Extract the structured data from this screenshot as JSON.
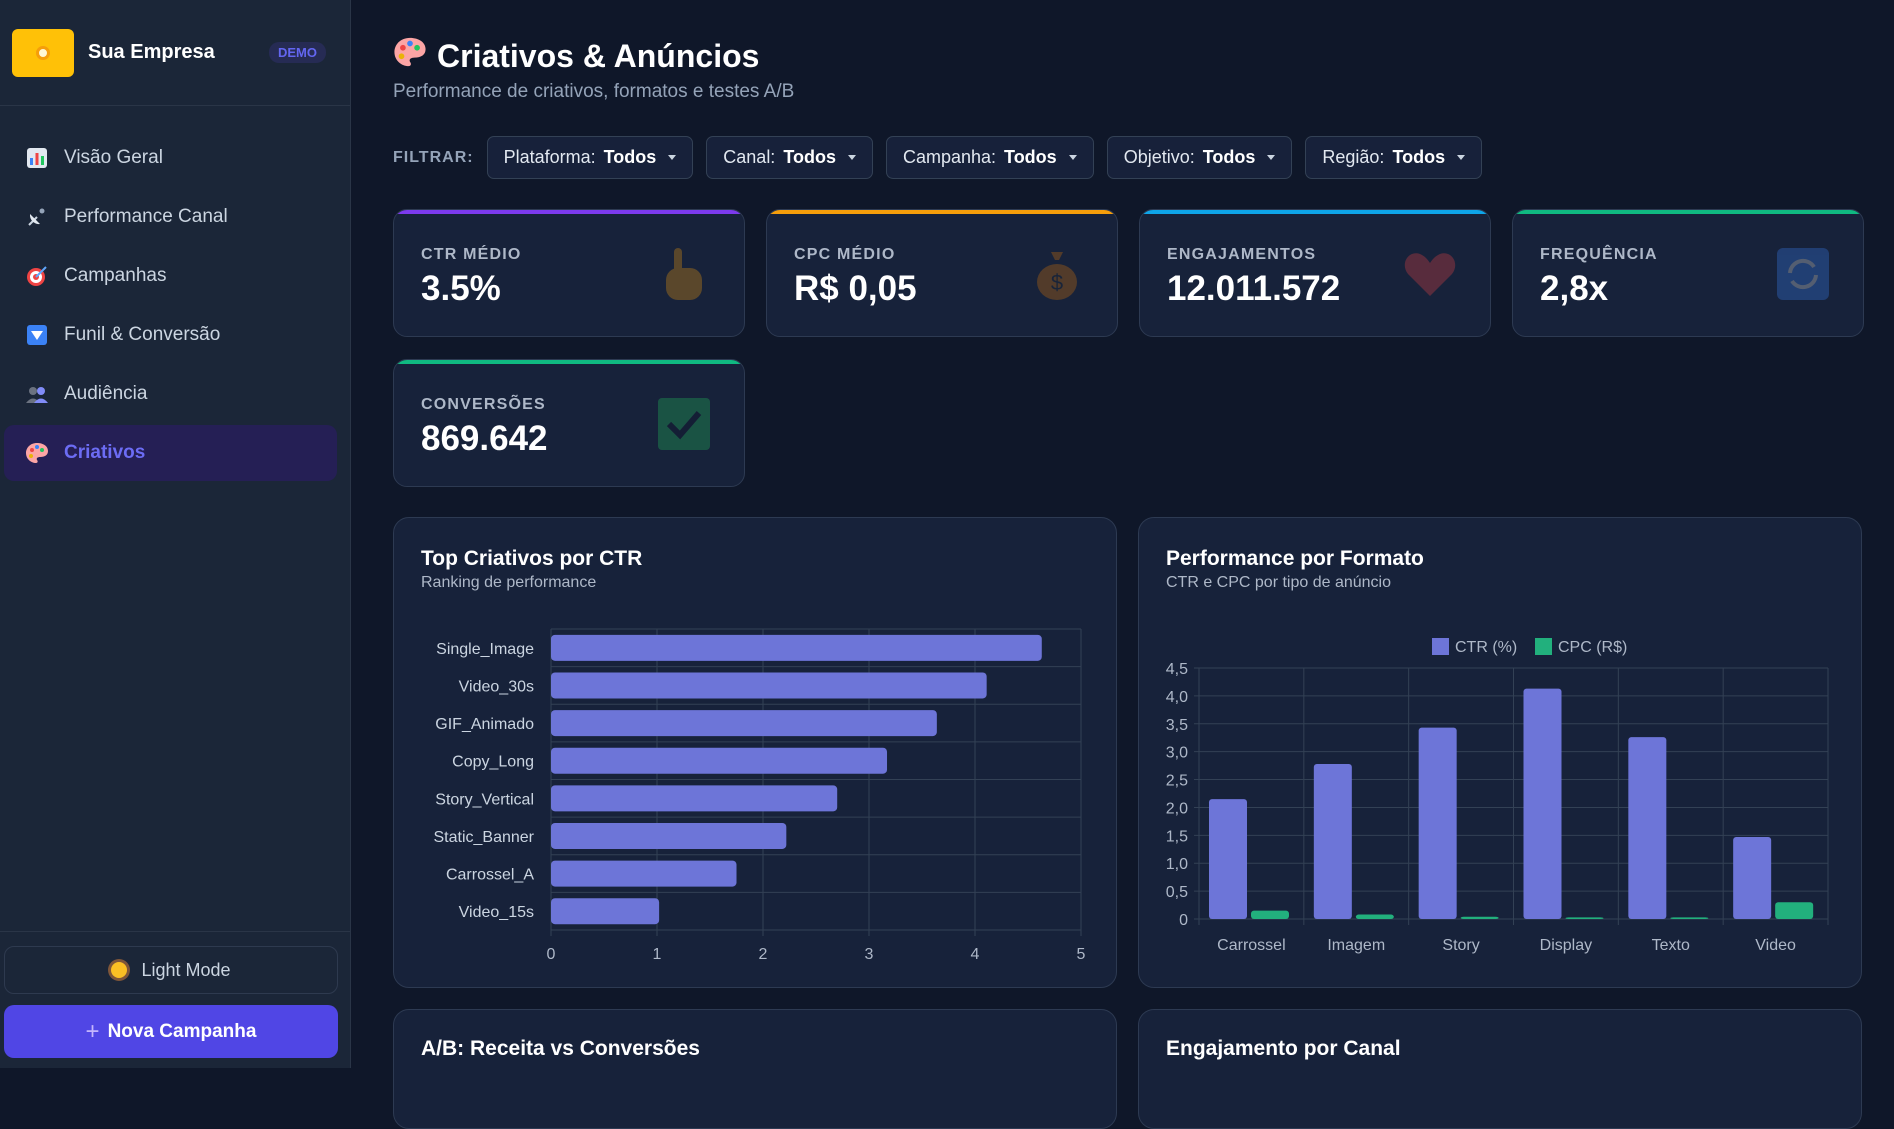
{
  "brand": {
    "name": "Sua Empresa",
    "badge": "DEMO"
  },
  "nav": [
    {
      "label": "Visão Geral",
      "icon": "bar-chart-icon"
    },
    {
      "label": "Performance Canal",
      "icon": "satellite-icon"
    },
    {
      "label": "Campanhas",
      "icon": "target-icon"
    },
    {
      "label": "Funil & Conversão",
      "icon": "funnel-down-icon"
    },
    {
      "label": "Audiência",
      "icon": "people-icon"
    },
    {
      "label": "Criativos",
      "icon": "palette-icon",
      "active": true
    }
  ],
  "sidebar_bottom": {
    "light_mode": "Light Mode",
    "new_campaign": "Nova Campanha"
  },
  "header": {
    "title": "Criativos & Anúncios",
    "subtitle": "Performance de criativos, formatos e testes A/B"
  },
  "filters": {
    "label": "FILTRAR:",
    "items": [
      {
        "name": "Plataforma:",
        "value": "Todos"
      },
      {
        "name": "Canal:",
        "value": "Todos"
      },
      {
        "name": "Campanha:",
        "value": "Todos"
      },
      {
        "name": "Objetivo:",
        "value": "Todos"
      },
      {
        "name": "Região:",
        "value": "Todos"
      }
    ]
  },
  "kpis": [
    {
      "label": "CTR MÉDIO",
      "value": "3.5%",
      "accent": "#7c3aed",
      "icon": "pointing-hand-icon"
    },
    {
      "label": "CPC MÉDIO",
      "value": "R$ 0,05",
      "accent": "#f59e0b",
      "icon": "money-bag-icon"
    },
    {
      "label": "ENGAJAMENTOS",
      "value": "12.011.572",
      "accent": "#0ea5e9",
      "icon": "heart-icon"
    },
    {
      "label": "FREQUÊNCIA",
      "value": "2,8x",
      "accent": "#10b981",
      "icon": "repeat-icon"
    },
    {
      "label": "CONVERSÕES",
      "value": "869.642",
      "accent": "#10b981",
      "icon": "check-icon"
    }
  ],
  "cards": {
    "top_creatives": {
      "title": "Top Criativos por CTR",
      "subtitle": "Ranking de performance"
    },
    "format": {
      "title": "Performance por Formato",
      "subtitle": "CTR e CPC por tipo de anúncio"
    },
    "ab": {
      "title": "A/B: Receita vs Conversões"
    },
    "engagement": {
      "title": "Engajamento por Canal"
    }
  },
  "colors": {
    "bar": "#6d75d8",
    "cpc": "#22b07d",
    "grid": "#334155",
    "tick": "#aeb8c8"
  },
  "chart_data": [
    {
      "type": "bar",
      "orientation": "horizontal",
      "title": "Top Criativos por CTR",
      "subtitle": "Ranking de performance",
      "categories": [
        "Single_Image",
        "Video_30s",
        "GIF_Animado",
        "Copy_Long",
        "Story_Vertical",
        "Static_Banner",
        "Carrossel_A",
        "Video_15s"
      ],
      "values": [
        4.63,
        4.11,
        3.64,
        3.17,
        2.7,
        2.22,
        1.75,
        1.02
      ],
      "xlim": [
        0,
        5
      ],
      "xticks": [
        "0",
        "1",
        "2",
        "3",
        "4",
        "5"
      ],
      "grid": true
    },
    {
      "type": "bar",
      "title": "Performance por Formato",
      "subtitle": "CTR e CPC por tipo de anúncio",
      "categories": [
        "Carrossel",
        "Imagem",
        "Story",
        "Display",
        "Texto",
        "Video"
      ],
      "series": [
        {
          "name": "CTR (%)",
          "values": [
            2.15,
            2.78,
            3.43,
            4.13,
            3.26,
            1.47
          ],
          "color": "#6d75d8"
        },
        {
          "name": "CPC (R$)",
          "values": [
            0.15,
            0.08,
            0.04,
            0.03,
            0.03,
            0.3
          ],
          "color": "#22b07d"
        }
      ],
      "ylim": [
        0,
        4.5
      ],
      "yticks": [
        "0",
        "0,5",
        "1,0",
        "1,5",
        "2,0",
        "2,5",
        "3,0",
        "3,5",
        "4,0",
        "4,5"
      ],
      "legend": "top-center",
      "grid": true
    }
  ]
}
